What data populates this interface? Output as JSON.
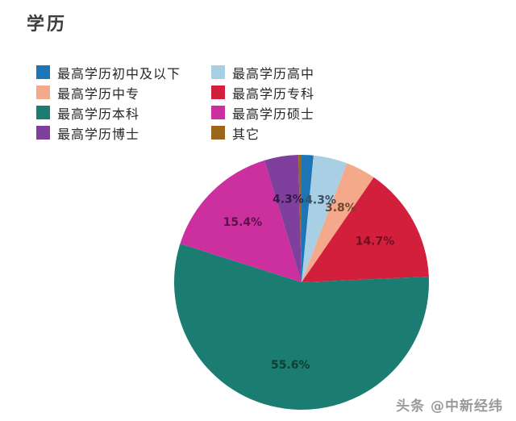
{
  "title": "学历",
  "watermark": "头条 @中新经纬",
  "chart_data": {
    "type": "pie",
    "title": "学历",
    "total": 100,
    "start_angle_deg": 0,
    "direction": "clockwise",
    "legend_position": "top-left, two columns, row-major",
    "background_color": "#ffffff",
    "slices": [
      {
        "label": "最高学历初中及以下",
        "value": 1.5,
        "display": "",
        "show_label": false,
        "color": "#1c76b5",
        "label_color": "#0c3b5c"
      },
      {
        "label": "最高学历高中",
        "value": 4.3,
        "display": "4.3%",
        "show_label": true,
        "color": "#a9cfe5",
        "label_color": "#39505e"
      },
      {
        "label": "最高学历中专",
        "value": 3.8,
        "display": "3.8%",
        "show_label": true,
        "color": "#f5a98b",
        "label_color": "#6f452c"
      },
      {
        "label": "最高学历专科",
        "value": 14.7,
        "display": "14.7%",
        "show_label": true,
        "color": "#d21f3c",
        "label_color": "#70101f"
      },
      {
        "label": "最高学历本科",
        "value": 55.6,
        "display": "55.6%",
        "show_label": true,
        "color": "#1b7c71",
        "label_color": "#0f3e38"
      },
      {
        "label": "最高学历硕士",
        "value": 15.4,
        "display": "15.4%",
        "show_label": true,
        "color": "#cc2f9e",
        "label_color": "#5c1048"
      },
      {
        "label": "最高学历博士",
        "value": 4.3,
        "display": "4.3%",
        "show_label": true,
        "color": "#7e3f9d",
        "label_color": "#331a42"
      },
      {
        "label": "其它",
        "value": 0.4,
        "display": "",
        "show_label": false,
        "color": "#9c661c",
        "label_color": "#4a300d"
      }
    ]
  }
}
